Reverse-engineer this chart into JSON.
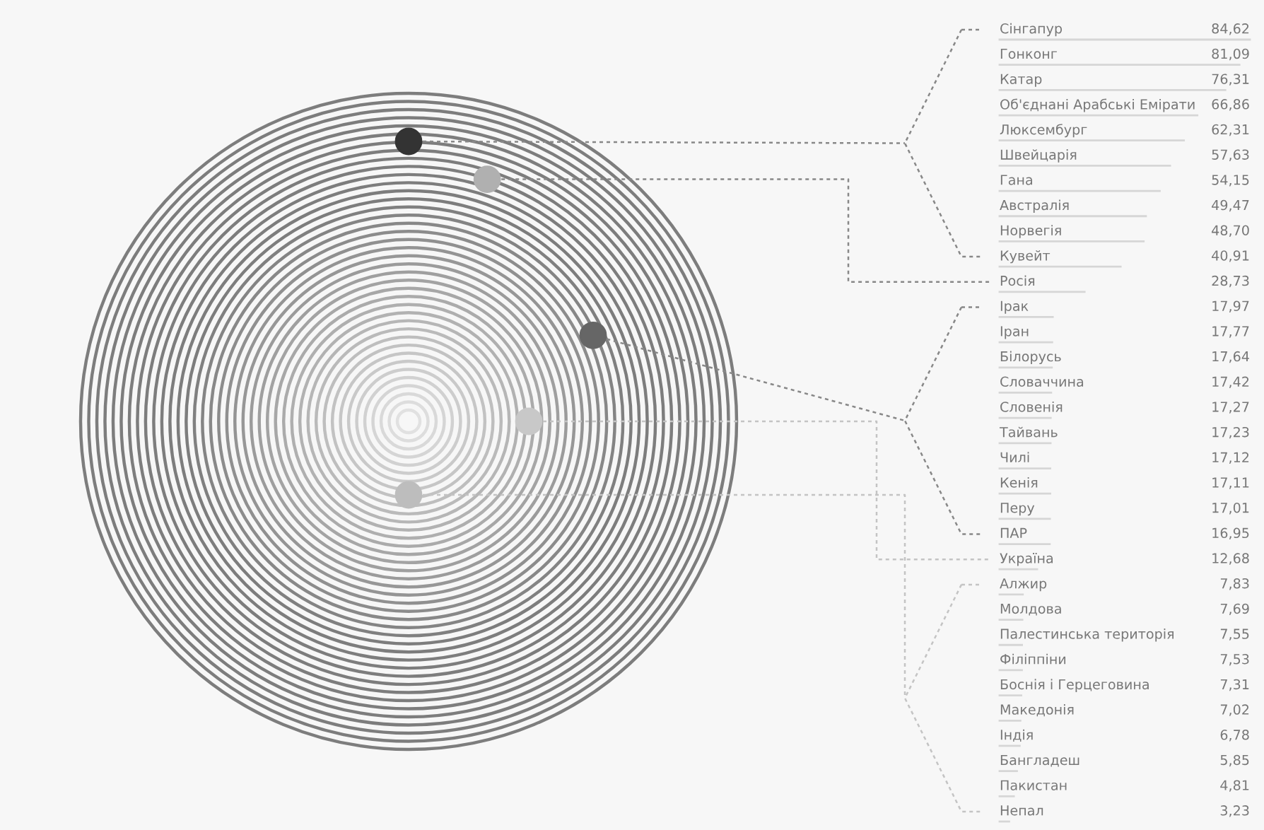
{
  "chart_data": {
    "type": "other",
    "categories": [
      "Сінгапур",
      "Гонконг",
      "Катар",
      "Об'єднані Арабські Емірати",
      "Люксембург",
      "Швейцарія",
      "Гана",
      "Австралія",
      "Норвегія",
      "Кувейт",
      "Росія",
      "Ірак",
      "Іран",
      "Білорусь",
      "Словаччина",
      "Словенія",
      "Тайвань",
      "Чилі",
      "Кенія",
      "Перу",
      "ПАР",
      "Україна",
      "Алжир",
      "Молдова",
      "Палестинська територія",
      "Філіппіни",
      "Боснія і Герцеговина",
      "Македонія",
      "Індія",
      "Бангладеш",
      "Пакистан",
      "Непал"
    ],
    "value_labels": [
      "84,62",
      "81,09",
      "76,31",
      "66,86",
      "62,31",
      "57,63",
      "54,15",
      "49,47",
      "48,70",
      "40,91",
      "28,73",
      "17,97",
      "17,77",
      "17,64",
      "17,42",
      "17,27",
      "17,23",
      "17,12",
      "17,11",
      "17,01",
      "16,95",
      "12,68",
      "7,83",
      "7,69",
      "7,55",
      "7,53",
      "7,31",
      "7,02",
      "6,78",
      "5,85",
      "4,81",
      "3,23"
    ],
    "values": [
      84.62,
      81.09,
      76.31,
      66.86,
      62.31,
      57.63,
      54.15,
      49.47,
      48.7,
      40.91,
      28.73,
      17.97,
      17.77,
      17.64,
      17.42,
      17.27,
      17.23,
      17.12,
      17.11,
      17.01,
      16.95,
      12.68,
      7.83,
      7.69,
      7.55,
      7.53,
      7.31,
      7.02,
      6.78,
      5.85,
      4.81,
      3.23
    ],
    "colors": [
      "#333333",
      "#333333",
      "#333333",
      "#333333",
      "#333333",
      "#333333",
      "#333333",
      "#333333",
      "#333333",
      "#333333",
      "#b0b0b0",
      "#666666",
      "#666666",
      "#666666",
      "#666666",
      "#666666",
      "#666666",
      "#666666",
      "#666666",
      "#666666",
      "#666666",
      "#c8c8c8",
      "#bdbdbd",
      "#bdbdbd",
      "#bdbdbd",
      "#bdbdbd",
      "#bdbdbd",
      "#bdbdbd",
      "#bdbdbd",
      "#bdbdbd",
      "#bdbdbd",
      "#bdbdbd"
    ]
  }
}
